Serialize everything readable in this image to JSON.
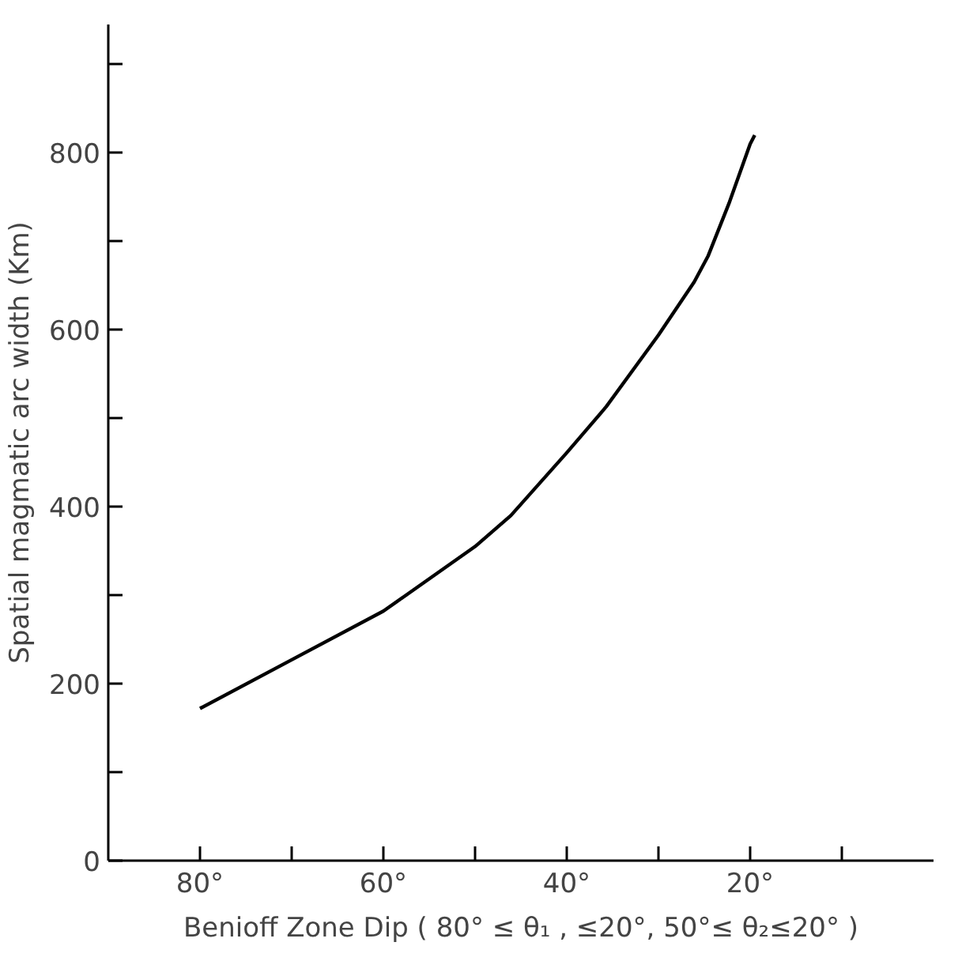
{
  "chart_data": {
    "type": "line",
    "xlabel": "Benioff Zone Dip ( 80° ≤ θ₁ , ≤20°, 50°≤ θ₂≤20° )",
    "ylabel": "Spatial magmatic arc width (Km)",
    "xlim": [
      90,
      0
    ],
    "ylim": [
      0,
      945
    ],
    "xticks": [
      {
        "value": 80,
        "label": "80°"
      },
      {
        "value": 70,
        "label": null
      },
      {
        "value": 60,
        "label": "60°"
      },
      {
        "value": 50,
        "label": null
      },
      {
        "value": 40,
        "label": "40°"
      },
      {
        "value": 30,
        "label": null
      },
      {
        "value": 20,
        "label": "20°"
      },
      {
        "value": 10,
        "label": null
      }
    ],
    "yticks": [
      0,
      {
        "value": 100,
        "label": null
      },
      200,
      {
        "value": 300,
        "label": null
      },
      400,
      {
        "value": 500,
        "label": null
      },
      600,
      {
        "value": 700,
        "label": null
      },
      800,
      {
        "value": 900,
        "label": null
      }
    ],
    "grid": false,
    "marker": "none",
    "line_style": "solid",
    "series": [
      {
        "color": "#000000",
        "x": [
          80,
          70,
          60,
          50,
          46.1,
          40,
          35.7,
          30,
          26.1,
          24.6,
          22.3,
          20,
          19.5
        ],
        "values": [
          172,
          227,
          282,
          355,
          390,
          461,
          513,
          594,
          654,
          683,
          743,
          810,
          820
        ]
      }
    ]
  }
}
